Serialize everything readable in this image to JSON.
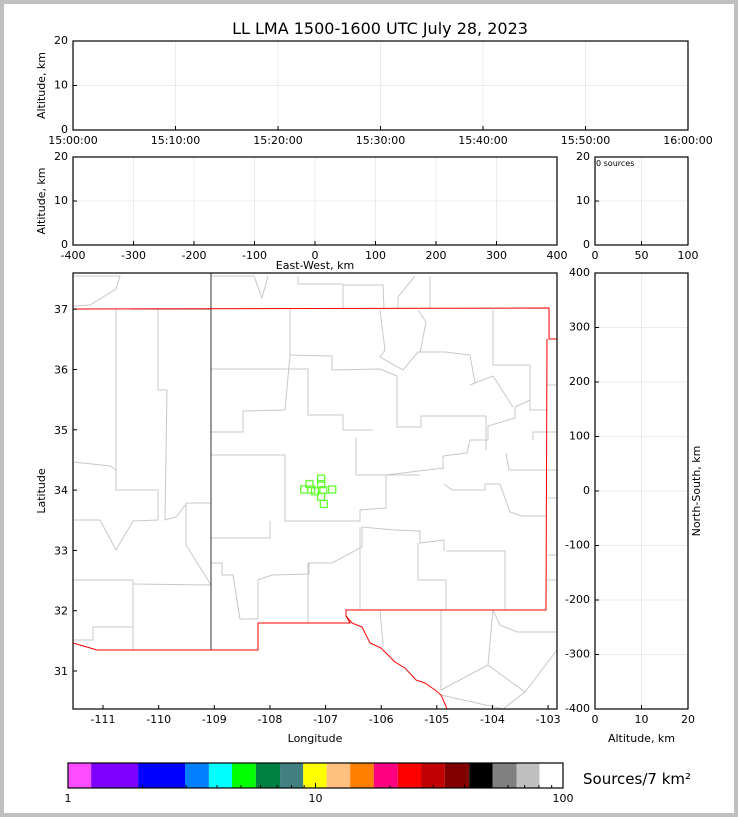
{
  "title": "LL LMA 1500-1600 UTC July 28, 2023",
  "chart_data": [
    {
      "id": "time-height",
      "type": "scatter",
      "xlabel": "",
      "ylabel": "Altitude, km",
      "xlim": [
        "15:00:00",
        "16:00:00"
      ],
      "ylim": [
        0,
        20
      ],
      "xticks": [
        "15:00:00",
        "15:10:00",
        "15:20:00",
        "15:30:00",
        "15:40:00",
        "15:50:00",
        "16:00:00"
      ],
      "yticks": [
        0,
        10,
        20
      ],
      "grid": true,
      "points": []
    },
    {
      "id": "ew-altitude",
      "type": "scatter",
      "xlabel": "East-West, km",
      "ylabel": "Altitude, km",
      "xlim": [
        -400,
        400
      ],
      "ylim": [
        0,
        20
      ],
      "xticks": [
        -400,
        -300,
        -200,
        -100,
        0,
        100,
        200,
        300,
        400
      ],
      "yticks": [
        0,
        10,
        20
      ],
      "grid": true,
      "points": []
    },
    {
      "id": "altitude-histogram",
      "type": "bar",
      "annotation": "0 sources",
      "xlim": [
        0,
        100
      ],
      "ylim": [
        0,
        20
      ],
      "xticks": [
        0,
        50,
        100
      ],
      "yticks": [
        0,
        10,
        20
      ],
      "grid": true,
      "values": []
    },
    {
      "id": "plan-view",
      "type": "scatter",
      "xlabel": "Longitude",
      "ylabel": "Latitude",
      "xlim": [
        -111.54,
        -102.84
      ],
      "ylim": [
        30.37,
        37.6
      ],
      "xticks": [
        -111,
        -110,
        -109,
        -108,
        -107,
        -106,
        -105,
        -104,
        -103
      ],
      "yticks": [
        31,
        32,
        33,
        34,
        35,
        36,
        37
      ],
      "grid": false,
      "stations": {
        "marker": "square",
        "color": "#66ff33",
        "lon": [
          -107.29,
          -107.385,
          -107.26,
          -107.19,
          -107.08,
          -107.08,
          -107.04,
          -107.08,
          -106.88,
          -107.03
        ],
        "lat": [
          34.1,
          34.01,
          34.01,
          33.98,
          34.19,
          34.1,
          34.0,
          33.89,
          34.01,
          33.77
        ]
      },
      "boundary_color": "#ff0000",
      "county_color": "#c8c8c8"
    },
    {
      "id": "altitude-ns",
      "type": "scatter",
      "xlabel": "Altitude, km",
      "ylabel": "North-South, km",
      "xlim": [
        0,
        20
      ],
      "ylim": [
        -400,
        400
      ],
      "xticks": [
        0,
        10,
        20
      ],
      "yticks": [
        -400,
        -300,
        -200,
        -100,
        0,
        100,
        200,
        300,
        400
      ],
      "grid": true,
      "points": []
    },
    {
      "id": "colorbar",
      "type": "heatmap",
      "label": "Sources/7 km²",
      "scale": "log",
      "range": [
        1,
        100
      ],
      "ticks": [
        "1",
        "10",
        "100"
      ],
      "bounds": [
        1,
        1.24,
        1.92,
        2.97,
        3.71,
        4.6,
        5.74,
        7.19,
        8.92,
        11.1,
        13.8,
        17.2,
        21.5,
        26.7,
        33.3,
        41.8,
        51.9,
        64.9,
        80.4,
        100
      ],
      "colors": [
        "#ff4dff",
        "#7f00ff",
        "#0000ff",
        "#0080ff",
        "#00ffff",
        "#00ff00",
        "#008040",
        "#408080",
        "#ffff00",
        "#ffc080",
        "#ff8000",
        "#ff0080",
        "#ff0000",
        "#c00000",
        "#800000",
        "#000000",
        "#808080",
        "#c0c0c0",
        "#ffffff"
      ]
    }
  ]
}
